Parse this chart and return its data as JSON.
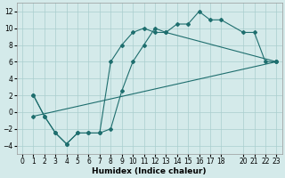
{
  "xlabel": "Humidex (Indice chaleur)",
  "bg_color": "#d4eaea",
  "grid_color": "#aacece",
  "line_color": "#1e6e6e",
  "xlim": [
    -0.5,
    23.5
  ],
  "ylim": [
    -5,
    13
  ],
  "xticks": [
    0,
    1,
    2,
    3,
    4,
    5,
    6,
    7,
    8,
    9,
    10,
    11,
    12,
    13,
    14,
    15,
    16,
    17,
    18,
    20,
    21,
    22,
    23
  ],
  "yticks": [
    -4,
    -2,
    0,
    2,
    4,
    6,
    8,
    10,
    12
  ],
  "curve1": {
    "x": [
      1,
      2,
      3,
      4,
      5,
      6,
      7,
      8,
      9,
      10,
      11,
      12,
      13,
      14,
      15,
      16,
      17,
      18,
      20,
      21,
      22,
      23
    ],
    "y": [
      2,
      -0.5,
      -2.5,
      -3.8,
      -2.5,
      -2.5,
      -2.5,
      6.0,
      8,
      9.5,
      10,
      9.5,
      9.5,
      10.5,
      10.5,
      12,
      11,
      11,
      9.5,
      9.5,
      6,
      6
    ]
  },
  "curve2": {
    "x": [
      1,
      2,
      3,
      4,
      5,
      6,
      7,
      8,
      9,
      10,
      11,
      12,
      13,
      23
    ],
    "y": [
      2,
      -0.5,
      -2.5,
      -3.8,
      -2.5,
      -2.5,
      -2.5,
      -2.0,
      2.5,
      6.0,
      8,
      10,
      9.5,
      6
    ]
  },
  "curve3": {
    "x": [
      1,
      23
    ],
    "y": [
      -0.5,
      6
    ]
  }
}
